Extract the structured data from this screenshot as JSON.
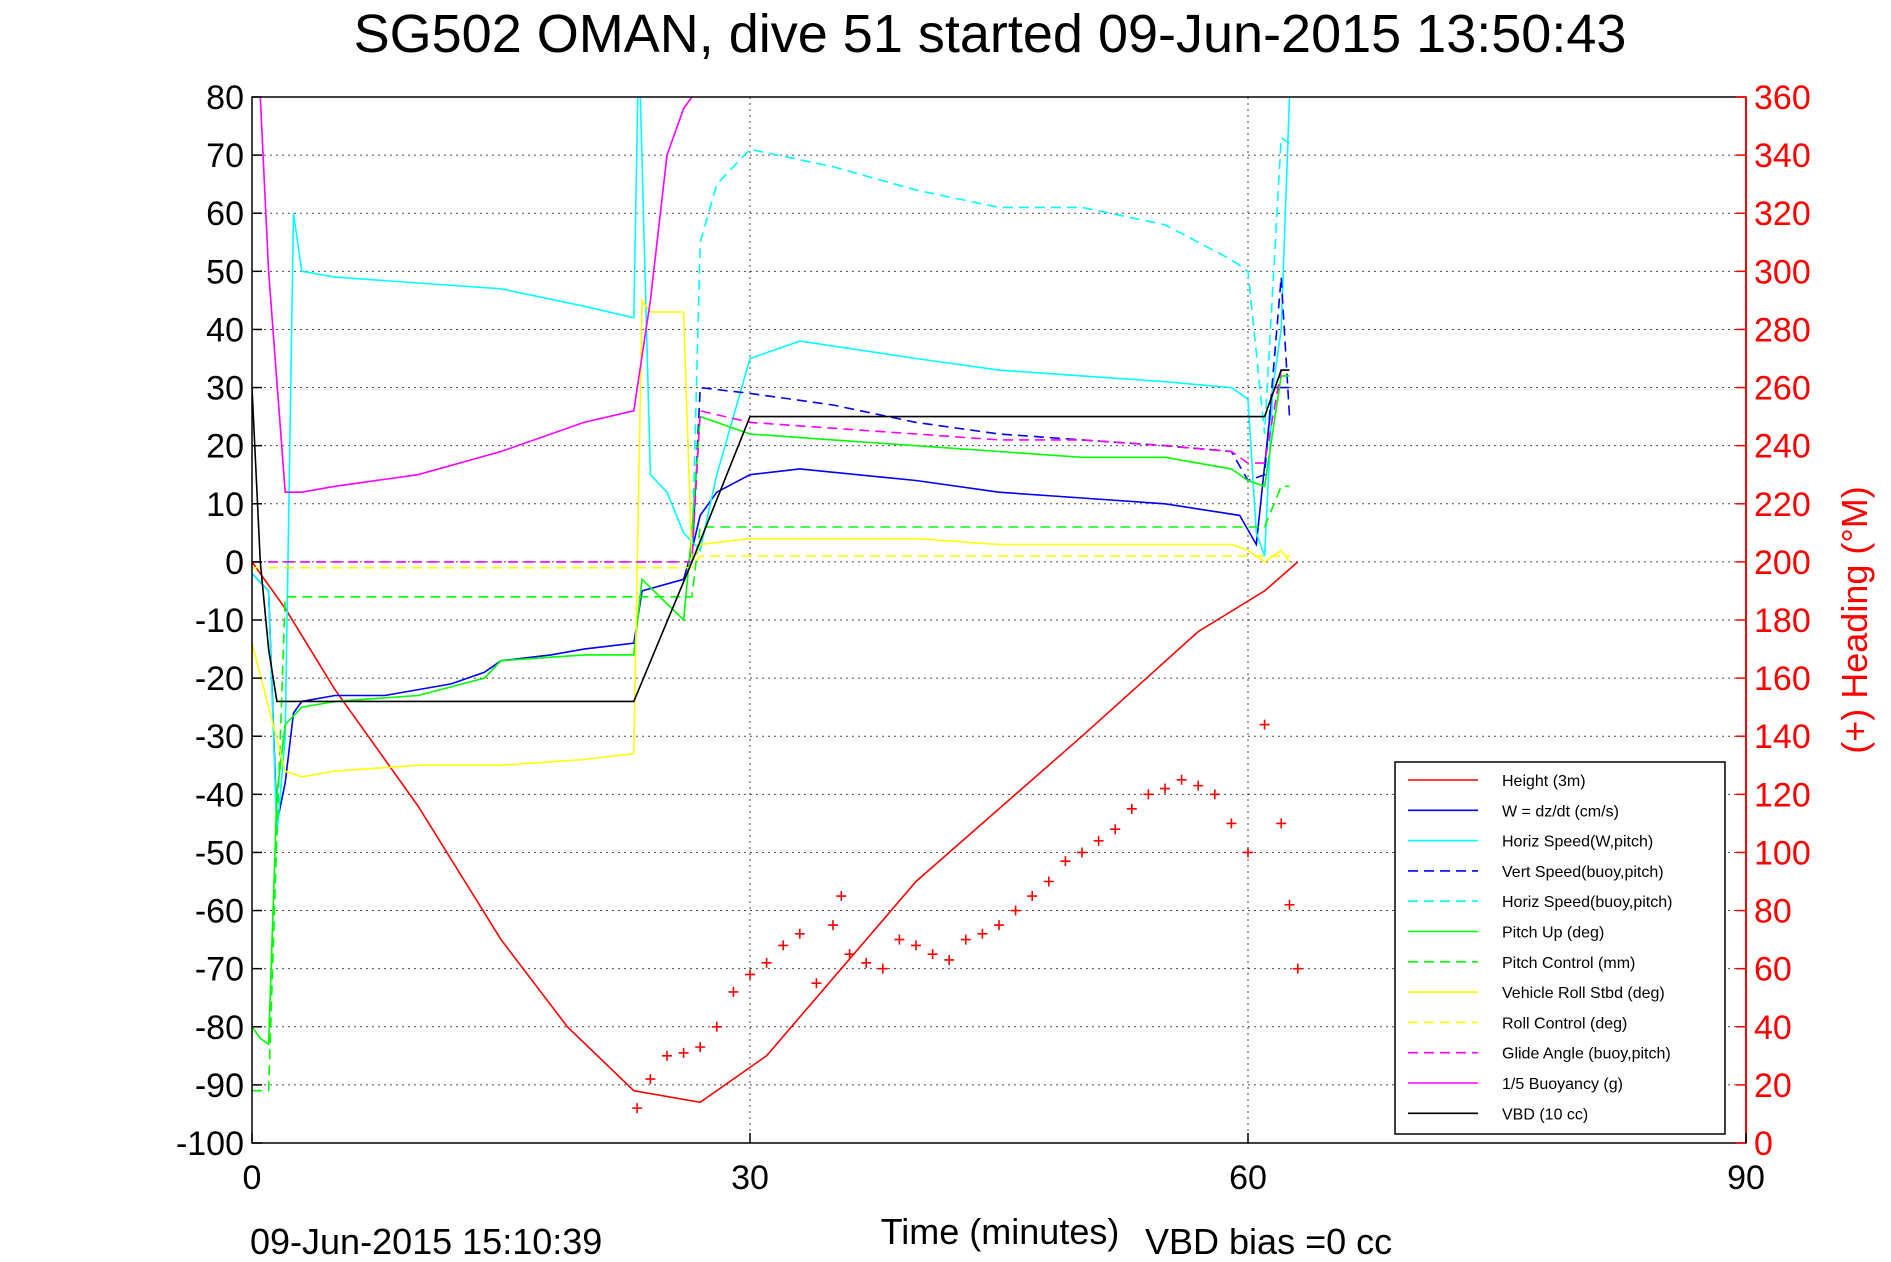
{
  "chart_data": {
    "type": "line",
    "title": "SG502 OMAN, dive 51 started 09-Jun-2015 13:50:43",
    "xlabel": "Time (minutes)",
    "ylabel_right": "(+) Heading (°M)",
    "xlim": [
      0,
      90
    ],
    "ylim": [
      -100,
      80
    ],
    "ylim_right": [
      0,
      360
    ],
    "x_ticks": [
      "0",
      "30",
      "60",
      "90"
    ],
    "y_ticks": [
      "80",
      "70",
      "60",
      "50",
      "40",
      "30",
      "20",
      "10",
      "0",
      "-10",
      "-20",
      "-30",
      "-40",
      "-50",
      "-60",
      "-70",
      "-80",
      "-90",
      "-100"
    ],
    "y_ticks_right": [
      "360",
      "340",
      "320",
      "300",
      "280",
      "260",
      "240",
      "220",
      "200",
      "180",
      "160",
      "140",
      "120",
      "100",
      "80",
      "60",
      "40",
      "20",
      "0"
    ],
    "grid": true,
    "legend_position": "lower-right",
    "footer_left": "09-Jun-2015 15:10:39",
    "footer_right": "VBD bias =0 cc",
    "series": [
      {
        "name": "Height (3m)",
        "color": "#ff0000",
        "dash": "solid",
        "x": [
          0,
          2,
          5,
          10,
          15,
          19,
          23,
          27,
          31,
          40,
          50,
          57,
          61,
          63
        ],
        "y": [
          0,
          -8,
          -22,
          -42,
          -65,
          -80,
          -91,
          -93,
          -85,
          -55,
          -30,
          -12,
          -5,
          0
        ]
      },
      {
        "name": "W = dz/dt (cm/s)",
        "color": "#0000ff",
        "dash": "solid",
        "x": [
          0,
          1,
          1.5,
          2,
          2.5,
          3,
          5,
          8,
          12,
          14,
          15,
          18,
          20,
          23,
          23.5,
          26,
          26.5,
          27,
          28,
          30,
          33,
          40,
          45,
          50,
          55,
          59.5,
          60.5,
          61.5,
          62,
          62.5
        ],
        "y": [
          -2,
          -5,
          -45,
          -38,
          -26,
          -24,
          -23,
          -23,
          -21,
          -19,
          -17,
          -16,
          -15,
          -14,
          -5,
          -3,
          2,
          8,
          12,
          15,
          16,
          14,
          12,
          11,
          10,
          8,
          3,
          30,
          30,
          30
        ]
      },
      {
        "name": "Horiz Speed(W,pitch)",
        "color": "#00ffff",
        "dash": "solid",
        "x": [
          0,
          1,
          1.5,
          2,
          2.5,
          3,
          5,
          10,
          15,
          20,
          23,
          23.3,
          24,
          25,
          26,
          27,
          28,
          30,
          33,
          40,
          45,
          50,
          55,
          59,
          60,
          60.5,
          61,
          61.5,
          62,
          62.5
        ],
        "y": [
          -2,
          -5,
          -47,
          -30,
          60,
          50,
          49,
          48,
          47,
          44,
          42,
          90,
          15,
          12,
          5,
          2,
          15,
          35,
          38,
          35,
          33,
          32,
          31,
          30,
          28,
          5,
          1,
          30,
          40,
          80
        ]
      },
      {
        "name": "Vert Speed(buoy,pitch)",
        "color": "#0000ff",
        "dash": "dashed",
        "x": [
          26.5,
          27,
          30,
          35,
          40,
          45,
          50,
          55,
          59,
          60,
          61,
          62,
          62.5
        ],
        "y": [
          0,
          30,
          29,
          27,
          24,
          22,
          21,
          20,
          19,
          14,
          15,
          49,
          25
        ]
      },
      {
        "name": "Horiz Speed(buoy,pitch)",
        "color": "#00ffff",
        "dash": "dashed",
        "x": [
          26.5,
          27,
          28,
          30,
          35,
          40,
          45,
          50,
          55,
          59,
          60,
          61,
          62,
          62.5
        ],
        "y": [
          0,
          55,
          65,
          71,
          68,
          64,
          61,
          61,
          58,
          52,
          50,
          22,
          73,
          72
        ]
      },
      {
        "name": "Pitch Up (deg)",
        "color": "#00ff00",
        "dash": "solid",
        "x": [
          0,
          0.5,
          1,
          1.5,
          2,
          3,
          5,
          10,
          14,
          15,
          20,
          23,
          23.5,
          26,
          26.5,
          27,
          30,
          35,
          40,
          45,
          50,
          55,
          59,
          60,
          61,
          62,
          62.5
        ],
        "y": [
          -80,
          -82,
          -83,
          -40,
          -28,
          -25,
          -24,
          -23,
          -20,
          -17,
          -16,
          -16,
          -3,
          -10,
          5,
          25,
          22,
          21,
          20,
          19,
          18,
          18,
          16,
          14,
          13,
          32,
          32
        ]
      },
      {
        "name": "Pitch Control (mm)",
        "color": "#00ff00",
        "dash": "dashed",
        "x": [
          0,
          1,
          1.5,
          2,
          26.5,
          27,
          61,
          62,
          62.5
        ],
        "y": [
          -91,
          -91,
          -47,
          -6,
          -6,
          6,
          6,
          13,
          13
        ]
      },
      {
        "name": "Vehicle Roll Stbd (deg)",
        "color": "#ffff00",
        "dash": "solid",
        "x": [
          0,
          1,
          2,
          3,
          5,
          10,
          15,
          20,
          23,
          23.5,
          24,
          26,
          26.5,
          27,
          30,
          35,
          40,
          45,
          50,
          55,
          59,
          60,
          61,
          62,
          62.5
        ],
        "y": [
          -14,
          -25,
          -36,
          -37,
          -36,
          -35,
          -35,
          -34,
          -33,
          45,
          43,
          43,
          0,
          3,
          4,
          4,
          4,
          3,
          3,
          3,
          3,
          2,
          0,
          2,
          0
        ]
      },
      {
        "name": "Roll Control (deg)",
        "color": "#ffff00",
        "dash": "dashed",
        "x": [
          0,
          26.5,
          27,
          62.5
        ],
        "y": [
          -1,
          -1,
          1,
          1
        ]
      },
      {
        "name": "Glide Angle (buoy,pitch)",
        "color": "#ff00ff",
        "dash": "dashed",
        "x": [
          0,
          26.5,
          27,
          30,
          35,
          40,
          45,
          50,
          55,
          59,
          60,
          61,
          62,
          62.5
        ],
        "y": [
          0,
          0,
          26,
          24,
          23,
          22,
          21,
          21,
          20,
          19,
          17,
          17,
          33,
          33
        ]
      },
      {
        "name": "1/5 Buoyancy (g)",
        "color": "#ff00ff",
        "dash": "solid",
        "x": [
          0.5,
          1,
          2,
          3,
          5,
          10,
          15,
          20,
          23,
          24,
          25,
          26,
          26.5
        ],
        "y": [
          80,
          50,
          12,
          12,
          13,
          15,
          19,
          24,
          26,
          45,
          70,
          78,
          80
        ]
      },
      {
        "name": "VBD (10 cc)",
        "color": "#000000",
        "dash": "solid",
        "x": [
          0,
          0.5,
          1,
          1.5,
          2,
          23,
          26.5,
          30,
          61,
          62,
          62.5
        ],
        "y": [
          30,
          0,
          -15,
          -24,
          -24,
          -24,
          0,
          25,
          25,
          33,
          33
        ]
      }
    ],
    "heading": {
      "name": "Heading",
      "color": "#ff0000",
      "marker": "+",
      "axis": "right",
      "x": [
        23.2,
        24,
        25,
        26,
        27,
        28,
        29,
        30,
        31,
        32,
        33,
        34,
        35,
        35.5,
        36,
        37,
        38,
        39,
        40,
        41,
        42,
        43,
        44,
        45,
        46,
        47,
        48,
        49,
        50,
        51,
        52,
        53,
        54,
        55,
        56,
        57,
        58,
        59,
        60,
        61,
        62,
        62.5,
        63
      ],
      "y": [
        12,
        22,
        30,
        31,
        33,
        40,
        52,
        58,
        62,
        68,
        72,
        55,
        75,
        85,
        65,
        62,
        60,
        70,
        68,
        65,
        63,
        70,
        72,
        75,
        80,
        85,
        90,
        97,
        100,
        104,
        108,
        115,
        120,
        122,
        125,
        123,
        120,
        110,
        100,
        144,
        110,
        82,
        60
      ]
    }
  }
}
